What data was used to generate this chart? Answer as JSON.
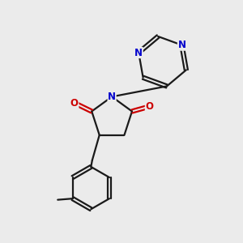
{
  "background_color": "#ebebeb",
  "bond_color": "#1a1a1a",
  "nitrogen_color": "#0000cc",
  "oxygen_color": "#cc0000",
  "line_width": 1.6,
  "figsize": [
    3.0,
    3.0
  ],
  "dpi": 100,
  "xlim": [
    0,
    10
  ],
  "ylim": [
    0,
    10
  ]
}
